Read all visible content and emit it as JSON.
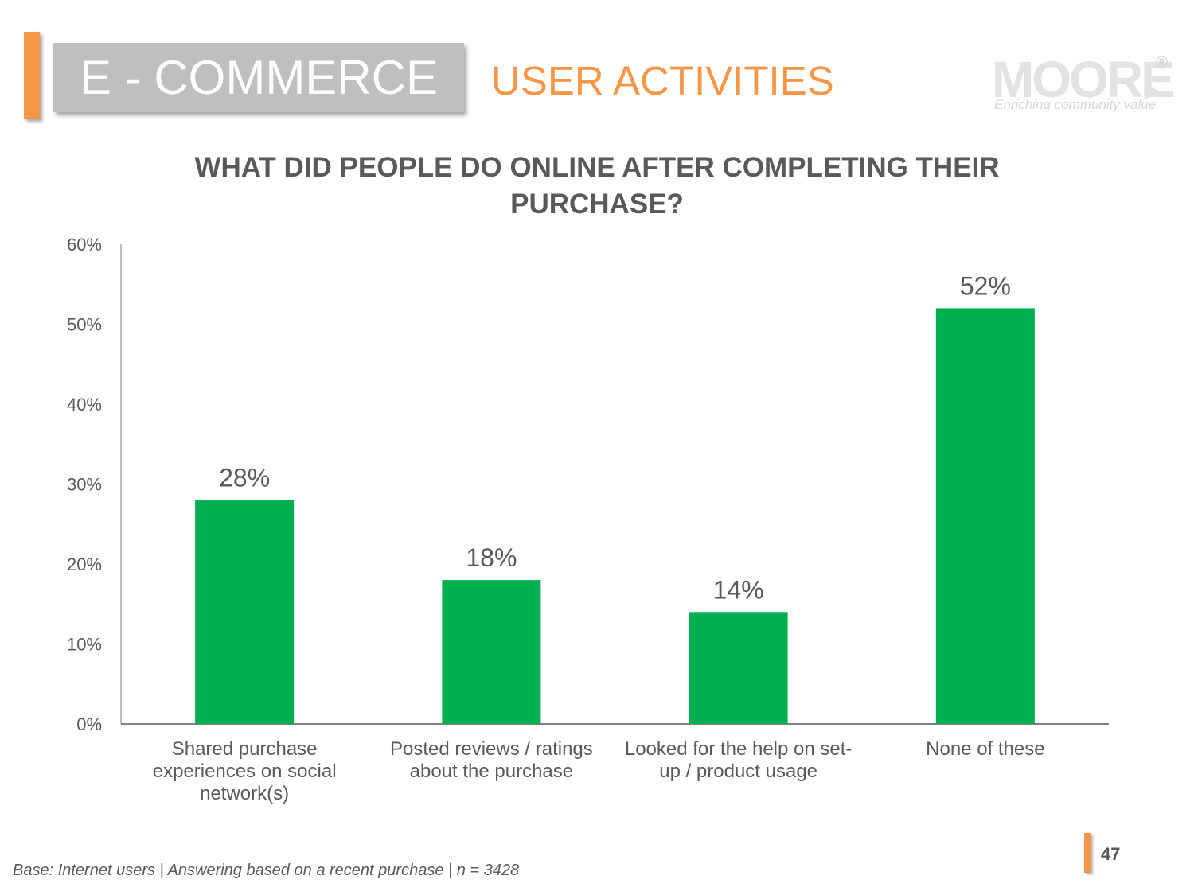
{
  "header": {
    "section_label": "E - COMMERCE",
    "subtitle": "USER ACTIVITIES"
  },
  "logo": {
    "wordmark": "MOORE",
    "registered": "®",
    "tagline": "Enriching community value"
  },
  "colors": {
    "accent": "#f79646",
    "bar": "#00b050",
    "text": "#595959",
    "section_box": "#bfbfbf"
  },
  "chart_data": {
    "type": "bar",
    "title": "WHAT DID PEOPLE DO ONLINE AFTER COMPLETING THEIR PURCHASE?",
    "categories": [
      "Shared purchase experiences on social network(s)",
      "Posted reviews / ratings about the purchase",
      "Looked for the help on set-up / product usage",
      "None of these"
    ],
    "category_lines": [
      [
        "Shared purchase",
        "experiences on social",
        "network(s)"
      ],
      [
        "Posted reviews / ratings",
        "about the purchase"
      ],
      [
        "Looked for the help on set-",
        "up / product usage"
      ],
      [
        "None of these"
      ]
    ],
    "values": [
      28,
      18,
      14,
      52
    ],
    "data_labels": [
      "28%",
      "18%",
      "14%",
      "52%"
    ],
    "ylim": [
      0,
      60
    ],
    "yticks": [
      0,
      10,
      20,
      30,
      40,
      50,
      60
    ],
    "ytick_labels": [
      "0%",
      "10%",
      "20%",
      "30%",
      "40%",
      "50%",
      "60%"
    ],
    "xlabel": "",
    "ylabel": "",
    "grid": false,
    "legend": "none"
  },
  "footer": {
    "base_note": "Base: Internet users | Answering based on a recent purchase | n = 3428",
    "page_number": "47"
  }
}
